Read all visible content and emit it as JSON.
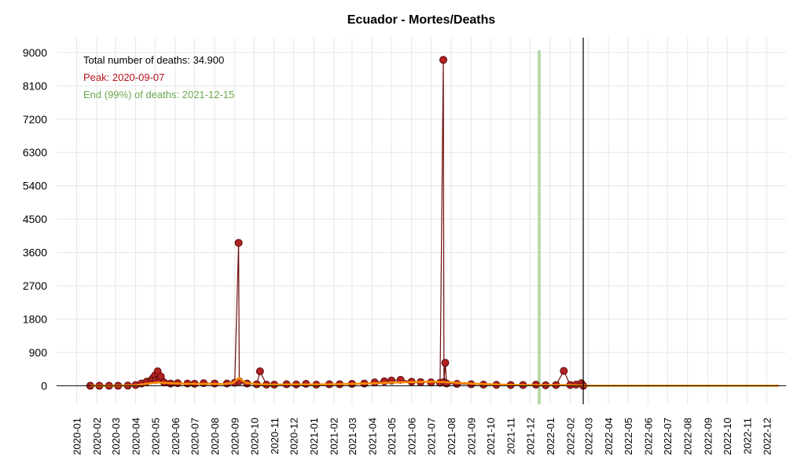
{
  "chart_data": {
    "type": "line",
    "title": "Ecuador - Mortes/Deaths",
    "xlabel": "",
    "ylabel": "",
    "ylim": [
      -500,
      9400
    ],
    "xlim": [
      "2019-12-01",
      "2022-12-31"
    ],
    "y_ticks": [
      0,
      900,
      1800,
      2700,
      3600,
      4500,
      5400,
      6300,
      7200,
      8100,
      9000
    ],
    "y_tick_labels": [
      "0",
      "900",
      "1800",
      "2700",
      "3600",
      "4500",
      "5400",
      "6300",
      "7200",
      "8100",
      "9000"
    ],
    "x_ticks": [
      "2020-01-01",
      "2020-02-01",
      "2020-03-01",
      "2020-04-01",
      "2020-05-01",
      "2020-06-01",
      "2020-07-01",
      "2020-08-01",
      "2020-09-01",
      "2020-10-01",
      "2020-11-01",
      "2020-12-01",
      "2021-01-01",
      "2021-02-01",
      "2021-03-01",
      "2021-04-01",
      "2021-05-01",
      "2021-06-01",
      "2021-07-01",
      "2021-08-01",
      "2021-09-01",
      "2021-10-01",
      "2021-11-01",
      "2021-12-01",
      "2022-01-01",
      "2022-02-01",
      "2022-03-01",
      "2022-04-01",
      "2022-05-01",
      "2022-06-01",
      "2022-07-01",
      "2022-08-01",
      "2022-09-01",
      "2022-10-01",
      "2022-11-01",
      "2022-12-01"
    ],
    "x_tick_labels": [
      "2020-01",
      "2020-02",
      "2020-03",
      "2020-04",
      "2020-05",
      "2020-06",
      "2020-07",
      "2020-08",
      "2020-09",
      "2020-10",
      "2020-11",
      "2020-12",
      "2021-01",
      "2021-02",
      "2021-03",
      "2021-04",
      "2021-05",
      "2021-06",
      "2021-07",
      "2021-08",
      "2021-09",
      "2021-10",
      "2021-11",
      "2021-12",
      "2022-01",
      "2022-02",
      "2022-03",
      "2022-04",
      "2022-05",
      "2022-06",
      "2022-07",
      "2022-08",
      "2022-09",
      "2022-10",
      "2022-11",
      "2022-12"
    ],
    "grid": true,
    "series": [
      {
        "values": [
          [
            "2020-01-22",
            0
          ],
          [
            "2020-02-05",
            0
          ],
          [
            "2020-02-20",
            0
          ],
          [
            "2020-03-05",
            0
          ],
          [
            "2020-03-20",
            5
          ],
          [
            "2020-04-01",
            20
          ],
          [
            "2020-04-10",
            60
          ],
          [
            "2020-04-18",
            110
          ],
          [
            "2020-04-25",
            150
          ],
          [
            "2020-04-28",
            210
          ],
          [
            "2020-05-01",
            280
          ],
          [
            "2020-05-03",
            160
          ],
          [
            "2020-05-05",
            390
          ],
          [
            "2020-05-08",
            180
          ],
          [
            "2020-05-10",
            250
          ],
          [
            "2020-05-15",
            90
          ],
          [
            "2020-05-25",
            60
          ],
          [
            "2020-06-05",
            70
          ],
          [
            "2020-06-20",
            60
          ],
          [
            "2020-07-01",
            55
          ],
          [
            "2020-07-15",
            70
          ],
          [
            "2020-08-01",
            60
          ],
          [
            "2020-08-20",
            60
          ],
          [
            "2020-09-01",
            80
          ],
          [
            "2020-09-07",
            3860
          ],
          [
            "2020-09-08",
            120
          ],
          [
            "2020-09-20",
            60
          ],
          [
            "2020-10-05",
            40
          ],
          [
            "2020-10-10",
            390
          ],
          [
            "2020-10-20",
            30
          ],
          [
            "2020-11-01",
            30
          ],
          [
            "2020-11-20",
            40
          ],
          [
            "2020-12-05",
            35
          ],
          [
            "2020-12-20",
            50
          ],
          [
            "2021-01-05",
            30
          ],
          [
            "2021-01-25",
            40
          ],
          [
            "2021-02-10",
            40
          ],
          [
            "2021-03-01",
            50
          ],
          [
            "2021-03-20",
            60
          ],
          [
            "2021-04-05",
            90
          ],
          [
            "2021-04-20",
            120
          ],
          [
            "2021-05-01",
            140
          ],
          [
            "2021-05-15",
            160
          ],
          [
            "2021-06-01",
            110
          ],
          [
            "2021-06-15",
            100
          ],
          [
            "2021-07-01",
            90
          ],
          [
            "2021-07-15",
            80
          ],
          [
            "2021-07-20",
            8800
          ],
          [
            "2021-07-21",
            100
          ],
          [
            "2021-07-23",
            620
          ],
          [
            "2021-07-25",
            60
          ],
          [
            "2021-08-10",
            50
          ],
          [
            "2021-09-01",
            40
          ],
          [
            "2021-09-20",
            30
          ],
          [
            "2021-10-10",
            25
          ],
          [
            "2021-11-01",
            20
          ],
          [
            "2021-11-20",
            20
          ],
          [
            "2021-12-10",
            30
          ],
          [
            "2021-12-25",
            15
          ],
          [
            "2022-01-10",
            20
          ],
          [
            "2022-01-22",
            400
          ],
          [
            "2022-02-01",
            20
          ],
          [
            "2022-02-10",
            30
          ],
          [
            "2022-02-18",
            70
          ],
          [
            "2022-02-21",
            0
          ]
        ],
        "color": "#b22222"
      },
      {
        "values": [
          [
            "2020-01-22",
            0
          ],
          [
            "2020-03-01",
            0
          ],
          [
            "2020-04-01",
            15
          ],
          [
            "2020-04-20",
            60
          ],
          [
            "2020-05-05",
            90
          ],
          [
            "2020-05-25",
            70
          ],
          [
            "2020-06-15",
            55
          ],
          [
            "2020-07-15",
            50
          ],
          [
            "2020-08-15",
            45
          ],
          [
            "2020-08-30",
            80
          ],
          [
            "2020-09-07",
            210
          ],
          [
            "2020-09-18",
            80
          ],
          [
            "2020-10-05",
            40
          ],
          [
            "2020-11-01",
            30
          ],
          [
            "2020-12-01",
            35
          ],
          [
            "2021-01-01",
            35
          ],
          [
            "2021-02-01",
            40
          ],
          [
            "2021-03-01",
            50
          ],
          [
            "2021-04-01",
            65
          ],
          [
            "2021-05-01",
            85
          ],
          [
            "2021-06-01",
            100
          ],
          [
            "2021-07-01",
            110
          ],
          [
            "2021-08-01",
            90
          ],
          [
            "2021-09-01",
            60
          ],
          [
            "2021-10-01",
            40
          ],
          [
            "2021-11-01",
            25
          ],
          [
            "2021-12-01",
            20
          ],
          [
            "2022-01-01",
            20
          ],
          [
            "2022-02-01",
            20
          ],
          [
            "2022-02-21",
            5
          ],
          [
            "2022-03-01",
            0
          ],
          [
            "2022-12-20",
            0
          ]
        ],
        "color": "#ff8c00"
      }
    ],
    "end_99_date": "2021-12-15",
    "current_date": "2022-02-21",
    "annotations": [
      {
        "text": "Total number of deaths: 34.900",
        "color": "#000000"
      },
      {
        "text": "Peak: 2020-09-07",
        "color": "#b5121b"
      },
      {
        "text": "End (99%) of deaths: 2021-12-15",
        "color": "#6aa84f"
      }
    ]
  }
}
